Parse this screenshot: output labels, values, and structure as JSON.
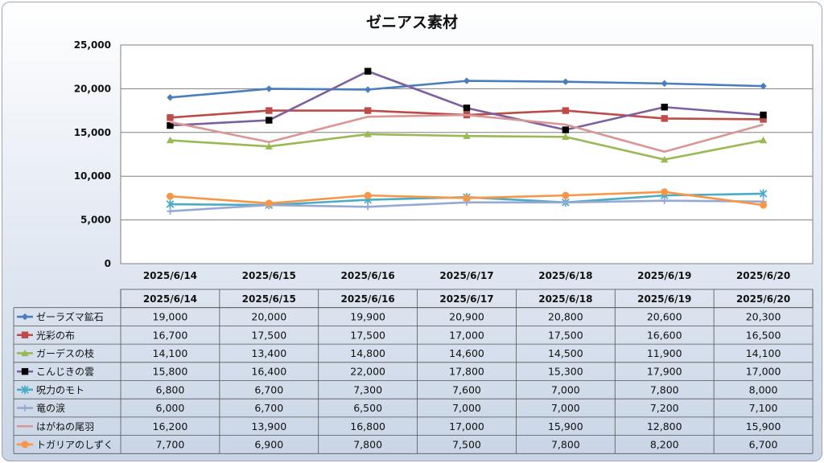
{
  "chart_data": {
    "type": "line",
    "title": "ゼニアス素材",
    "categories": [
      "2025/6/14",
      "2025/6/15",
      "2025/6/16",
      "2025/6/17",
      "2025/6/18",
      "2025/6/19",
      "2025/6/20"
    ],
    "ylim": [
      0,
      25000
    ],
    "yticks": [
      "0",
      "5,000",
      "10,000",
      "15,000",
      "20,000",
      "25,000"
    ],
    "grid": true,
    "legend": "data-table",
    "series": [
      {
        "name": "ゼーラズマ鉱石",
        "color": "#4a7ebb",
        "marker": "diamond",
        "values": [
          19000,
          20000,
          19900,
          20900,
          20800,
          20600,
          20300
        ],
        "labels": [
          "19,000",
          "20,000",
          "19,900",
          "20,900",
          "20,800",
          "20,600",
          "20,300"
        ]
      },
      {
        "name": "光彩の布",
        "color": "#be4b48",
        "marker": "square",
        "values": [
          16700,
          17500,
          17500,
          17000,
          17500,
          16600,
          16500
        ],
        "labels": [
          "16,700",
          "17,500",
          "17,500",
          "17,000",
          "17,500",
          "16,600",
          "16,500"
        ]
      },
      {
        "name": "ガーデスの枝",
        "color": "#98b954",
        "marker": "triangle",
        "values": [
          14100,
          13400,
          14800,
          14600,
          14500,
          11900,
          14100
        ],
        "labels": [
          "14,100",
          "13,400",
          "14,800",
          "14,600",
          "14,500",
          "11,900",
          "14,100"
        ]
      },
      {
        "name": "こんじきの雲",
        "color": "#7d5fa0",
        "marker": "blacksquare",
        "values": [
          15800,
          16400,
          22000,
          17800,
          15300,
          17900,
          17000
        ],
        "labels": [
          "15,800",
          "16,400",
          "22,000",
          "17,800",
          "15,300",
          "17,900",
          "17,000"
        ]
      },
      {
        "name": "呪力のモト",
        "color": "#4bacc6",
        "marker": "star",
        "values": [
          6800,
          6700,
          7300,
          7600,
          7000,
          7800,
          8000
        ],
        "labels": [
          "6,800",
          "6,700",
          "7,300",
          "7,600",
          "7,000",
          "7,800",
          "8,000"
        ]
      },
      {
        "name": "竜の涙",
        "color": "#95a9d3",
        "marker": "plus",
        "values": [
          6000,
          6700,
          6500,
          7000,
          7000,
          7200,
          7100
        ],
        "labels": [
          "6,000",
          "6,700",
          "6,500",
          "7,000",
          "7,000",
          "7,200",
          "7,100"
        ]
      },
      {
        "name": "はがねの尾羽",
        "color": "#d99694",
        "marker": "none",
        "values": [
          16200,
          13900,
          16800,
          17000,
          15900,
          12800,
          15900
        ],
        "labels": [
          "16,200",
          "13,900",
          "16,800",
          "17,000",
          "15,900",
          "12,800",
          "15,900"
        ]
      },
      {
        "name": "トガリアのしずく",
        "color": "#f79646",
        "marker": "circle",
        "values": [
          7700,
          6900,
          7800,
          7500,
          7800,
          8200,
          6700
        ],
        "labels": [
          "7,700",
          "6,900",
          "7,800",
          "7,500",
          "7,800",
          "8,200",
          "6,700"
        ]
      }
    ]
  }
}
